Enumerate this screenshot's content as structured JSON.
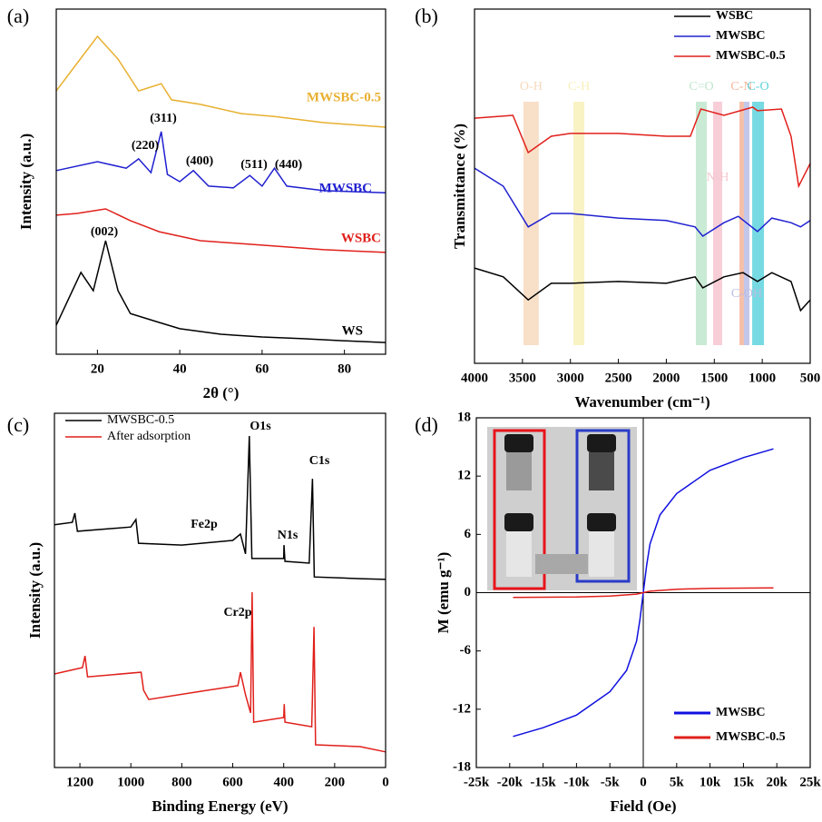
{
  "chart_data": [
    {
      "type": "line",
      "panel_label": "(a)",
      "xlabel": "2θ (°)",
      "ylabel": "Intensity (a.u.)",
      "xlim": [
        10,
        90
      ],
      "xticks": [
        20,
        40,
        60,
        80
      ],
      "ylim": [
        0,
        100
      ],
      "series": [
        {
          "name": "WS",
          "color": "#000000",
          "x": [
            10,
            16,
            19,
            22,
            25,
            28,
            35,
            40,
            50,
            60,
            70,
            80,
            90
          ],
          "values": [
            8.4,
            23.7,
            18.4,
            32.9,
            18.4,
            11.8,
            9.2,
            7.4,
            5.8,
            5,
            4.5,
            3.9,
            3.4
          ]
        },
        {
          "name": "WSBC",
          "color": "#e0201b",
          "x": [
            10,
            15,
            22,
            28,
            35,
            45,
            60,
            75,
            90
          ],
          "values": [
            40.3,
            40.8,
            42.1,
            38.7,
            35.5,
            32.9,
            31.6,
            30.3,
            29.5
          ]
        },
        {
          "name": "MWSBC",
          "color": "#2020d0",
          "x": [
            10,
            20,
            27,
            30,
            33,
            35.5,
            37,
            40,
            43.3,
            47,
            53,
            57,
            60,
            63,
            66,
            75,
            90
          ],
          "values": [
            53.2,
            55.8,
            53.9,
            56.6,
            52.6,
            64.5,
            52.1,
            50,
            53.2,
            48.7,
            48.2,
            51.8,
            48.7,
            53.9,
            48.7,
            47.4,
            46.8
          ]
        },
        {
          "name": "MWSBC-0.5",
          "color": "#e8b030",
          "x": [
            10,
            15,
            20,
            25,
            30,
            35.5,
            38,
            45,
            55,
            63,
            75,
            90
          ],
          "values": [
            76.3,
            84.2,
            92.1,
            85.5,
            76.3,
            78.4,
            73.7,
            72.4,
            69.7,
            68.9,
            67.1,
            65.8
          ]
        }
      ],
      "annotations": [
        "(002)",
        "(220)",
        "(311)",
        "(400)",
        "(511)",
        "(440)"
      ]
    },
    {
      "type": "line",
      "panel_label": "(b)",
      "xlabel": "Wavenumber (cm⁻¹)",
      "ylabel": "Transmittance (%)",
      "xlim": [
        4000,
        500
      ],
      "xticks": [
        4000,
        3500,
        3000,
        2500,
        2000,
        1500,
        1000,
        500
      ],
      "ylim": [
        0,
        100
      ],
      "legend": "upper right",
      "series": [
        {
          "name": "WSBC",
          "color": "#000000",
          "x": [
            4000,
            3700,
            3440,
            3200,
            3000,
            2500,
            2000,
            1700,
            1620,
            1400,
            1200,
            1050,
            900,
            700,
            600,
            500
          ],
          "values": [
            26.9,
            24.4,
            17.9,
            22.6,
            22.6,
            23.1,
            22.6,
            24.4,
            21.3,
            24.4,
            25.6,
            23.1,
            25.6,
            23.1,
            14.9,
            17.9
          ]
        },
        {
          "name": "MWSBC",
          "color": "#2020d0",
          "x": [
            4000,
            3700,
            3440,
            3200,
            3000,
            2500,
            2000,
            1700,
            1620,
            1400,
            1250,
            1050,
            900,
            700,
            600,
            500
          ],
          "values": [
            55.1,
            50,
            38.5,
            42.3,
            42.3,
            41,
            40.3,
            38.5,
            35.9,
            39.7,
            41.5,
            37.2,
            41,
            39.7,
            38.5,
            40.3
          ]
        },
        {
          "name": "MWSBC-0.5",
          "color": "#e0201b",
          "x": [
            4000,
            3600,
            3440,
            3200,
            3000,
            2500,
            2000,
            1750,
            1640,
            1400,
            1100,
            1050,
            800,
            700,
            620,
            500
          ],
          "values": [
            69.2,
            70,
            59.5,
            64.1,
            64.9,
            64.9,
            64.1,
            64.1,
            71.8,
            70,
            72.3,
            71.3,
            71.8,
            64.1,
            50,
            56.4
          ]
        }
      ],
      "bands": [
        {
          "label": "O-H",
          "from": 3490,
          "to": 3330,
          "color": "#f7d9bd"
        },
        {
          "label": "C-H",
          "from": 2969,
          "to": 2855,
          "color": "#f8f0b8"
        },
        {
          "label": "C=O",
          "from": 1692,
          "to": 1578,
          "color": "#bfe6cc"
        },
        {
          "label": "N-H",
          "from": 1512,
          "to": 1418,
          "color": "#f6c6d0"
        },
        {
          "label": "C-N",
          "from": 1238,
          "to": 1191,
          "color": "#f5b49a"
        },
        {
          "label": "C-O",
          "from": 1105,
          "to": 982,
          "color": "#5fd3dd"
        },
        {
          "label": "C-OH",
          "from": 1191,
          "to": 1134,
          "color": "#b8bde6"
        }
      ]
    },
    {
      "type": "line",
      "panel_label": "(c)",
      "xlabel": "Binding Energy (eV)",
      "ylabel": "Intensity (a.u.)",
      "xlim": [
        1300,
        0
      ],
      "xticks": [
        1200,
        1000,
        800,
        600,
        400,
        200,
        0
      ],
      "ylim": [
        0,
        100
      ],
      "legend": "upper left",
      "series": [
        {
          "name": "MWSBC-0.5",
          "color": "#000000",
          "x": [
            1300,
            1230,
            1220,
            1210,
            1000,
            980,
            970,
            800,
            600,
            570,
            550,
            535,
            525,
            400,
            399,
            395,
            300,
            287,
            280,
            100,
            0
          ],
          "values": [
            68.5,
            69.2,
            71.8,
            66.7,
            67.9,
            70,
            63.3,
            62.8,
            64.1,
            65.9,
            60.3,
            93.6,
            59,
            59,
            62.8,
            58.2,
            57.7,
            81.5,
            53.8,
            53.3,
            53.1
          ]
        },
        {
          "name": "After adsorption",
          "color": "#e0201b",
          "x": [
            1300,
            1190,
            1180,
            1170,
            960,
            950,
            930,
            700,
            580,
            570,
            550,
            530,
            524,
            518,
            400,
            398,
            395,
            290,
            281,
            275,
            100,
            0
          ],
          "values": [
            26.4,
            28.2,
            31.5,
            25.6,
            26.9,
            21.8,
            19.2,
            21.8,
            23.1,
            26.9,
            20.5,
            15.4,
            49.5,
            12.8,
            14.1,
            17.9,
            12.8,
            11.5,
            39.7,
            6.4,
            5.9,
            4.4
          ]
        }
      ],
      "annotations": [
        "O1s",
        "C1s",
        "Fe2p",
        "N1s",
        "Cr2p"
      ]
    },
    {
      "type": "line",
      "panel_label": "(d)",
      "xlabel": "Field (Oe)",
      "ylabel": "M (emu g⁻¹)",
      "xlim": [
        -25000,
        25000
      ],
      "xticks": [
        {
          "value": -25000,
          "label": "-25k"
        },
        {
          "value": -20000,
          "label": "-20k"
        },
        {
          "value": -15000,
          "label": "-15k"
        },
        {
          "value": -10000,
          "label": "-10k"
        },
        {
          "value": -5000,
          "label": "-5k"
        },
        0,
        {
          "value": 5000,
          "label": "5k"
        },
        {
          "value": 10000,
          "label": "10k"
        },
        {
          "value": 15000,
          "label": "15k"
        },
        {
          "value": 20000,
          "label": "20k"
        },
        {
          "value": 25000,
          "label": "25k"
        }
      ],
      "ylim": [
        -18,
        18
      ],
      "yticks": [
        -18,
        -12,
        -6,
        0,
        6,
        12,
        18
      ],
      "zero_lines": true,
      "legend": "lower right",
      "series": [
        {
          "name": "MWSBC",
          "color": "#1010e0",
          "x": [
            -19500,
            -15000,
            -10000,
            -5000,
            -2500,
            -1000,
            -500,
            0,
            500,
            1000,
            2500,
            5000,
            10000,
            15000,
            19500
          ],
          "values": [
            -14.8,
            -13.9,
            -12.6,
            -10.2,
            -8,
            -5,
            -2.8,
            0,
            2.8,
            5,
            8,
            10.2,
            12.6,
            13.9,
            14.8
          ]
        },
        {
          "name": "MWSBC-0.5",
          "color": "#e0201b",
          "x": [
            -19500,
            -10000,
            -5000,
            -1000,
            0,
            1000,
            5000,
            10000,
            19500
          ],
          "values": [
            -0.5,
            -0.45,
            -0.35,
            -0.15,
            0,
            0.15,
            0.35,
            0.45,
            0.5
          ]
        }
      ]
    }
  ]
}
